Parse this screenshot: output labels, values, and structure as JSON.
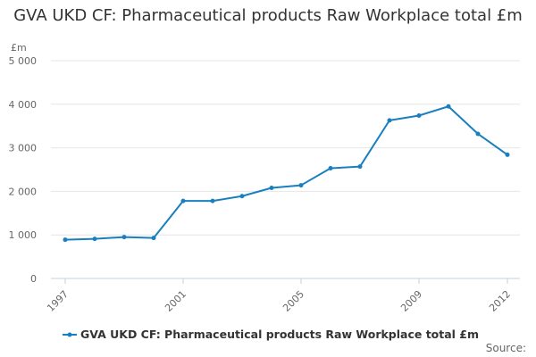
{
  "chart_data": {
    "type": "line",
    "title": "GVA UKD CF: Pharmaceutical products Raw Workplace total £m",
    "y_unit": "£m",
    "xlabel": "",
    "ylabel": "",
    "x": [
      1997,
      1998,
      1999,
      2000,
      2001,
      2002,
      2003,
      2004,
      2005,
      2006,
      2007,
      2008,
      2009,
      2010,
      2011,
      2012
    ],
    "x_tick_labels": [
      "1997",
      "2001",
      "2005",
      "2009",
      "2012"
    ],
    "x_tick_values": [
      1997,
      2001,
      2005,
      2009,
      2012
    ],
    "y_tick_labels": [
      "0",
      "1 000",
      "2 000",
      "3 000",
      "4 000",
      "5 000"
    ],
    "y_tick_values": [
      0,
      1000,
      2000,
      3000,
      4000,
      5000
    ],
    "ylim": [
      0,
      5000
    ],
    "xlim": [
      1997,
      2012
    ],
    "grid": "horizontal",
    "legend_position": "bottom",
    "series": [
      {
        "name": "GVA UKD CF: Pharmaceutical products Raw Workplace total £m",
        "color": "#1a7fbf",
        "values": [
          890,
          910,
          950,
          930,
          1780,
          1780,
          1890,
          2080,
          2140,
          2530,
          2570,
          3630,
          3740,
          3950,
          3320,
          2840
        ]
      }
    ],
    "source_label": "Source:"
  }
}
